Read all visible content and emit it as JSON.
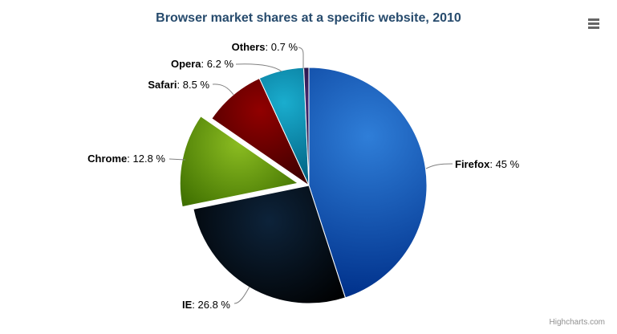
{
  "title": "Browser market shares at a specific website, 2010",
  "title_color": "#274b6d",
  "credits": "Highcharts.com",
  "icons": {
    "context_menu": "hamburger-icon"
  },
  "chart_data": {
    "type": "pie",
    "title": "Browser market shares at a specific website, 2010",
    "value_unit": "%",
    "direction": "clockwise",
    "start_angle_deg": 0,
    "legend": "none",
    "background_color": "#ffffff",
    "border_color": "#ffffff",
    "connector_color": "#808080",
    "slices": [
      {
        "name": "Firefox",
        "value": 45,
        "display": ": 45 %",
        "color": "#2f7ed8",
        "sliced": false
      },
      {
        "name": "IE",
        "value": 26.8,
        "display": ": 26.8 %",
        "color": "#0d233a",
        "sliced": false
      },
      {
        "name": "Chrome",
        "value": 12.8,
        "display": ": 12.8 %",
        "color": "#8bbc21",
        "sliced": true
      },
      {
        "name": "Safari",
        "value": 8.5,
        "display": ": 8.5 %",
        "color": "#910000",
        "sliced": false
      },
      {
        "name": "Opera",
        "value": 6.2,
        "display": ": 6.2 %",
        "color": "#1aadce",
        "sliced": false
      },
      {
        "name": "Others",
        "value": 0.7,
        "display": ": 0.7 %",
        "color": "#492970",
        "sliced": false
      }
    ]
  }
}
